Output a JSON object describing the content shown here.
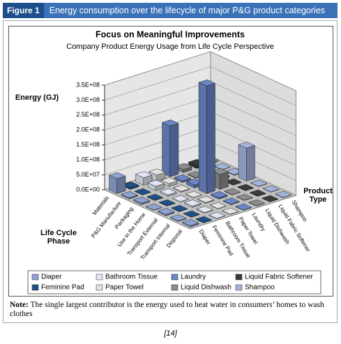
{
  "header": {
    "label": "Figure 1",
    "title": "Energy consumption over the lifecycle of major P&G product categories"
  },
  "chart_data": {
    "type": "bar3d",
    "title": "Focus on Meaningful Improvements",
    "subtitle": "Company Product Energy Usage from Life Cycle Perspective",
    "y_label": "Energy (GJ)",
    "x_label": "Life Cycle Phase",
    "z_label": "Product Type",
    "categories": [
      "Materials",
      "P&G Manufacture",
      "Packaging",
      "Use in the Home",
      "Transport External",
      "Transport Internal",
      "Disposal"
    ],
    "ylim": [
      0,
      350000000
    ],
    "yticks": [
      {
        "value": 0,
        "label": "0.0E+00"
      },
      {
        "value": 50000000,
        "label": "5.0E+07"
      },
      {
        "value": 100000000,
        "label": "1.0E+08"
      },
      {
        "value": 150000000,
        "label": "1.5E+08"
      },
      {
        "value": 200000000,
        "label": "2.0E+08"
      },
      {
        "value": 250000000,
        "label": "2.5E+08"
      },
      {
        "value": 300000000,
        "label": "3.0E+08"
      },
      {
        "value": 350000000,
        "label": "3.5E+08"
      }
    ],
    "series": [
      {
        "name": "Diaper",
        "color": "#8ea3d3",
        "values": [
          50000000,
          5000000,
          5000000,
          1000000,
          5000000,
          2000000,
          5000000
        ]
      },
      {
        "name": "Feminine Pad",
        "color": "#1f4f86",
        "values": [
          5000000,
          1000000,
          1000000,
          1000000,
          1000000,
          1000000,
          1000000
        ]
      },
      {
        "name": "Bathroom Tissue",
        "color": "#dfe5f3",
        "values": [
          25000000,
          15000000,
          5000000,
          1000000,
          5000000,
          2000000,
          1000000
        ]
      },
      {
        "name": "Paper Towel",
        "color": "#e2e2e2",
        "values": [
          20000000,
          10000000,
          3000000,
          1000000,
          3000000,
          1000000,
          1000000
        ]
      },
      {
        "name": "Laundry",
        "color": "#6a86c6",
        "values": [
          170000000,
          5000000,
          10000000,
          360000000,
          5000000,
          2000000,
          1000000
        ]
      },
      {
        "name": "Liquid Dishwash",
        "color": "#8c8c8c",
        "values": [
          10000000,
          2000000,
          5000000,
          50000000,
          1000000,
          1000000,
          1000000
        ]
      },
      {
        "name": "Liquid Fabric Softener",
        "color": "#3a3a3a",
        "values": [
          10000000,
          1000000,
          3000000,
          1000000,
          1000000,
          1000000,
          1000000
        ]
      },
      {
        "name": "Shampoo",
        "color": "#a3b3dc",
        "values": [
          5000000,
          1000000,
          3000000,
          110000000,
          1000000,
          1000000,
          1000000
        ]
      }
    ]
  },
  "note": {
    "label": "Note:",
    "text": "The single largest contributor is the energy used to heat water in consumers’ homes to wash clothes"
  },
  "caption": "[14]"
}
